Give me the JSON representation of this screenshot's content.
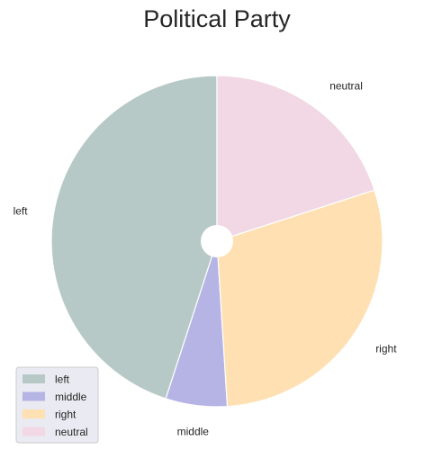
{
  "chart_data": {
    "type": "pie",
    "title": "Political Party",
    "categories": [
      "left",
      "middle",
      "right",
      "neutral"
    ],
    "values": [
      45,
      6,
      29,
      20
    ],
    "colors": [
      "#b7c9c6",
      "#b5b4e4",
      "#fee0b3",
      "#f1d8e4"
    ],
    "start_angle_deg": 90,
    "direction": "counterclockwise",
    "center_hole": true,
    "legend": {
      "placement": "lower-left",
      "entries": [
        "left",
        "middle",
        "right",
        "neutral"
      ]
    }
  }
}
